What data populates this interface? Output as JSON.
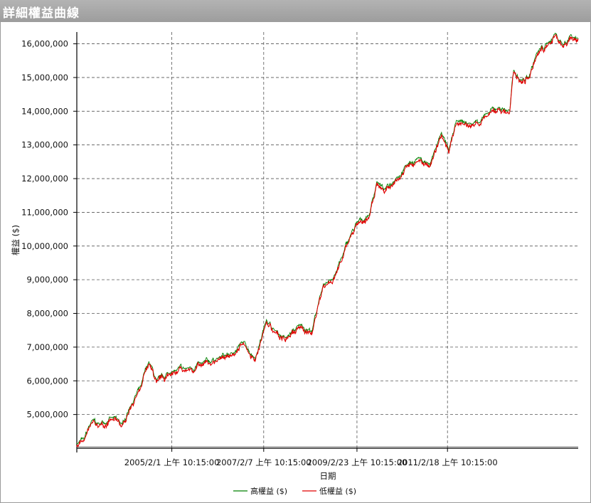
{
  "window": {
    "title": "詳細權益曲線"
  },
  "chart_data": {
    "type": "line",
    "xlabel": "日期",
    "ylabel": "權益 ($)",
    "x_ticks": [
      "2005/2/1 上午 10:15:00",
      "2007/2/7 上午 10:15:00",
      "2009/2/23 上午 10:15:00",
      "2011/2/18 上午 10:15:00"
    ],
    "x_range": [
      "2003/1/2",
      "2013/12/31"
    ],
    "y_ticks": [
      5000000,
      6000000,
      7000000,
      8000000,
      9000000,
      10000000,
      11000000,
      12000000,
      13000000,
      14000000,
      15000000,
      16000000
    ],
    "y_tick_labels": [
      "5,000,000",
      "6,000,000",
      "7,000,000",
      "8,000,000",
      "9,000,000",
      "10,000,000",
      "11,000,000",
      "12,000,000",
      "13,000,000",
      "14,000,000",
      "15,000,000",
      "16,000,000"
    ],
    "ylim": [
      4000000,
      16350000
    ],
    "grid": true,
    "legend_position": "bottom-center",
    "series": [
      {
        "name": "高權益 ($)",
        "color": "#008000"
      },
      {
        "name": "低權益 ($)",
        "color": "#e00000"
      }
    ],
    "equity_points": [
      {
        "x": "2003/1/2",
        "y": 4120000
      },
      {
        "x": "2003/3/1",
        "y": 4250000
      },
      {
        "x": "2003/5/1",
        "y": 4800000
      },
      {
        "x": "2003/7/1",
        "y": 4700000
      },
      {
        "x": "2003/10/1",
        "y": 4900000
      },
      {
        "x": "2004/1/1",
        "y": 4700000
      },
      {
        "x": "2004/3/1",
        "y": 5200000
      },
      {
        "x": "2004/6/1",
        "y": 5850000
      },
      {
        "x": "2004/8/1",
        "y": 6550000
      },
      {
        "x": "2004/10/1",
        "y": 6000000
      },
      {
        "x": "2005/2/1",
        "y": 6250000
      },
      {
        "x": "2005/6/1",
        "y": 6350000
      },
      {
        "x": "2005/10/1",
        "y": 6500000
      },
      {
        "x": "2006/2/1",
        "y": 6650000
      },
      {
        "x": "2006/6/1",
        "y": 6800000
      },
      {
        "x": "2006/9/1",
        "y": 7150000
      },
      {
        "x": "2006/12/1",
        "y": 6650000
      },
      {
        "x": "2007/3/1",
        "y": 7800000
      },
      {
        "x": "2007/5/1",
        "y": 7500000
      },
      {
        "x": "2007/8/1",
        "y": 7250000
      },
      {
        "x": "2007/12/1",
        "y": 7650000
      },
      {
        "x": "2008/3/1",
        "y": 7450000
      },
      {
        "x": "2008/5/1",
        "y": 8500000
      },
      {
        "x": "2008/7/1",
        "y": 8900000
      },
      {
        "x": "2008/9/1",
        "y": 9150000
      },
      {
        "x": "2008/11/1",
        "y": 9700000
      },
      {
        "x": "2009/1/1",
        "y": 10300000
      },
      {
        "x": "2009/3/1",
        "y": 10700000
      },
      {
        "x": "2009/6/1",
        "y": 10900000
      },
      {
        "x": "2009/8/1",
        "y": 11900000
      },
      {
        "x": "2009/10/1",
        "y": 11650000
      },
      {
        "x": "2010/1/1",
        "y": 12000000
      },
      {
        "x": "2010/4/1",
        "y": 12400000
      },
      {
        "x": "2010/7/1",
        "y": 12600000
      },
      {
        "x": "2010/10/1",
        "y": 12400000
      },
      {
        "x": "2011/1/1",
        "y": 13350000
      },
      {
        "x": "2011/3/1",
        "y": 12800000
      },
      {
        "x": "2011/5/1",
        "y": 13700000
      },
      {
        "x": "2011/9/1",
        "y": 13600000
      },
      {
        "x": "2012/1/1",
        "y": 13900000
      },
      {
        "x": "2012/4/1",
        "y": 14100000
      },
      {
        "x": "2012/7/1",
        "y": 14000000
      },
      {
        "x": "2012/8/1",
        "y": 15200000
      },
      {
        "x": "2012/10/1",
        "y": 14900000
      },
      {
        "x": "2012/12/1",
        "y": 15000000
      },
      {
        "x": "2013/2/1",
        "y": 15700000
      },
      {
        "x": "2013/5/1",
        "y": 16000000
      },
      {
        "x": "2013/7/1",
        "y": 16300000
      },
      {
        "x": "2013/9/1",
        "y": 15950000
      },
      {
        "x": "2013/11/1",
        "y": 16250000
      },
      {
        "x": "2013/12/31",
        "y": 16150000
      }
    ]
  }
}
